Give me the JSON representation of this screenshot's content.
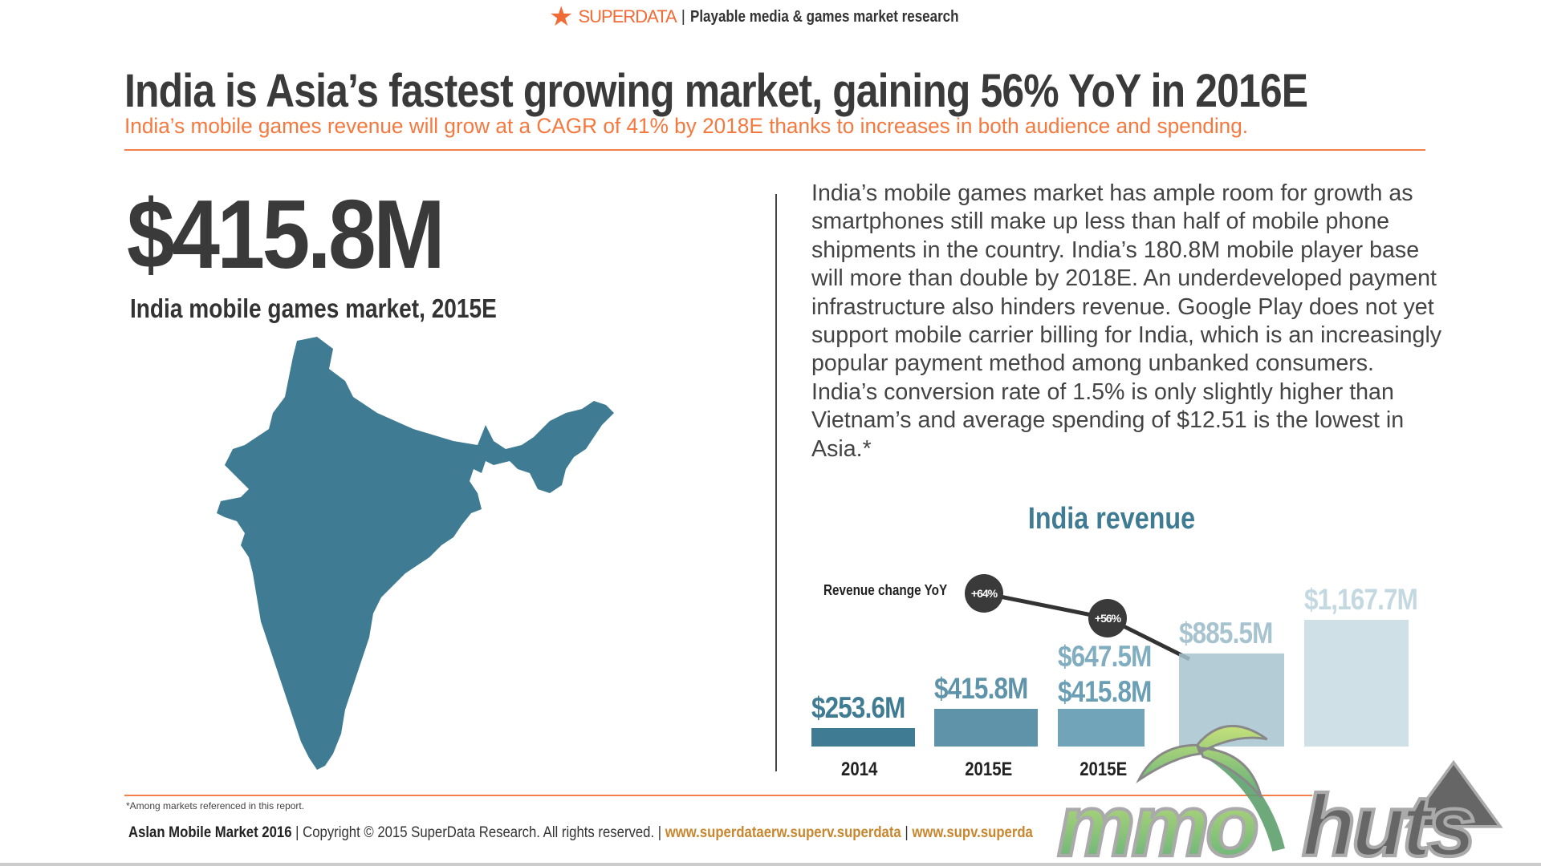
{
  "header": {
    "brand": "SUPERDATA",
    "separator": "|",
    "tagline": "Playable media & games market research",
    "colors": {
      "brand": "#f26b36"
    }
  },
  "title": "India is Asia’s fastest growing market, gaining 56% YoY in 2016E",
  "subtitle": "India’s mobile games revenue will grow at a CAGR of 41% by 2018E thanks to increases in both audience and spending.",
  "headline": {
    "value": "$415.8M",
    "label": "India mobile games market, 2015E"
  },
  "paragraph": "India’s mobile games market has ample room for growth as smartphones still make up less than half of mobile phone shipments in the country. India’s 180.8M mobile player base will more than double by 2018E. An underdeveloped payment infrastructure also hinders revenue. Google Play does not yet support mobile carrier billing for India, which is an increasingly popular payment method among unbanked consumers. India’s conversion rate of 1.5% is only slightly higher than Vietnam’s and average spending of $12.51 is the lowest in Asia.*",
  "chart_data": {
    "type": "bar",
    "title": "India revenue",
    "categories": [
      "2014",
      "2015E",
      "2015E",
      "",
      ""
    ],
    "values": [
      253.6,
      415.8,
      415.8,
      885.5,
      1167.7
    ],
    "value_labels": [
      "$253.6M",
      "$415.8M",
      "$415.8M",
      "$885.5M",
      "$1,167.7M"
    ],
    "ghost_label": "$647.5M",
    "unit": "USD millions",
    "yoy": {
      "label": "Revenue change YoY",
      "values": [
        "+64%",
        "+56%"
      ]
    },
    "colors": [
      "#3f7b92",
      "#5f93aa",
      "#6a9fb5",
      "#a7c3cf",
      "#c3d8e0"
    ]
  },
  "footnote": "*Among markets referenced in this report.",
  "footer": {
    "report": "Aslan Mobile Market 2016",
    "copyright": "Copyright © 2015 SuperData Research. All rights reserved.",
    "link": "www.superdataerw.superv.superdata",
    "link2": "www.supv.superda"
  },
  "watermark": "mmohuts"
}
